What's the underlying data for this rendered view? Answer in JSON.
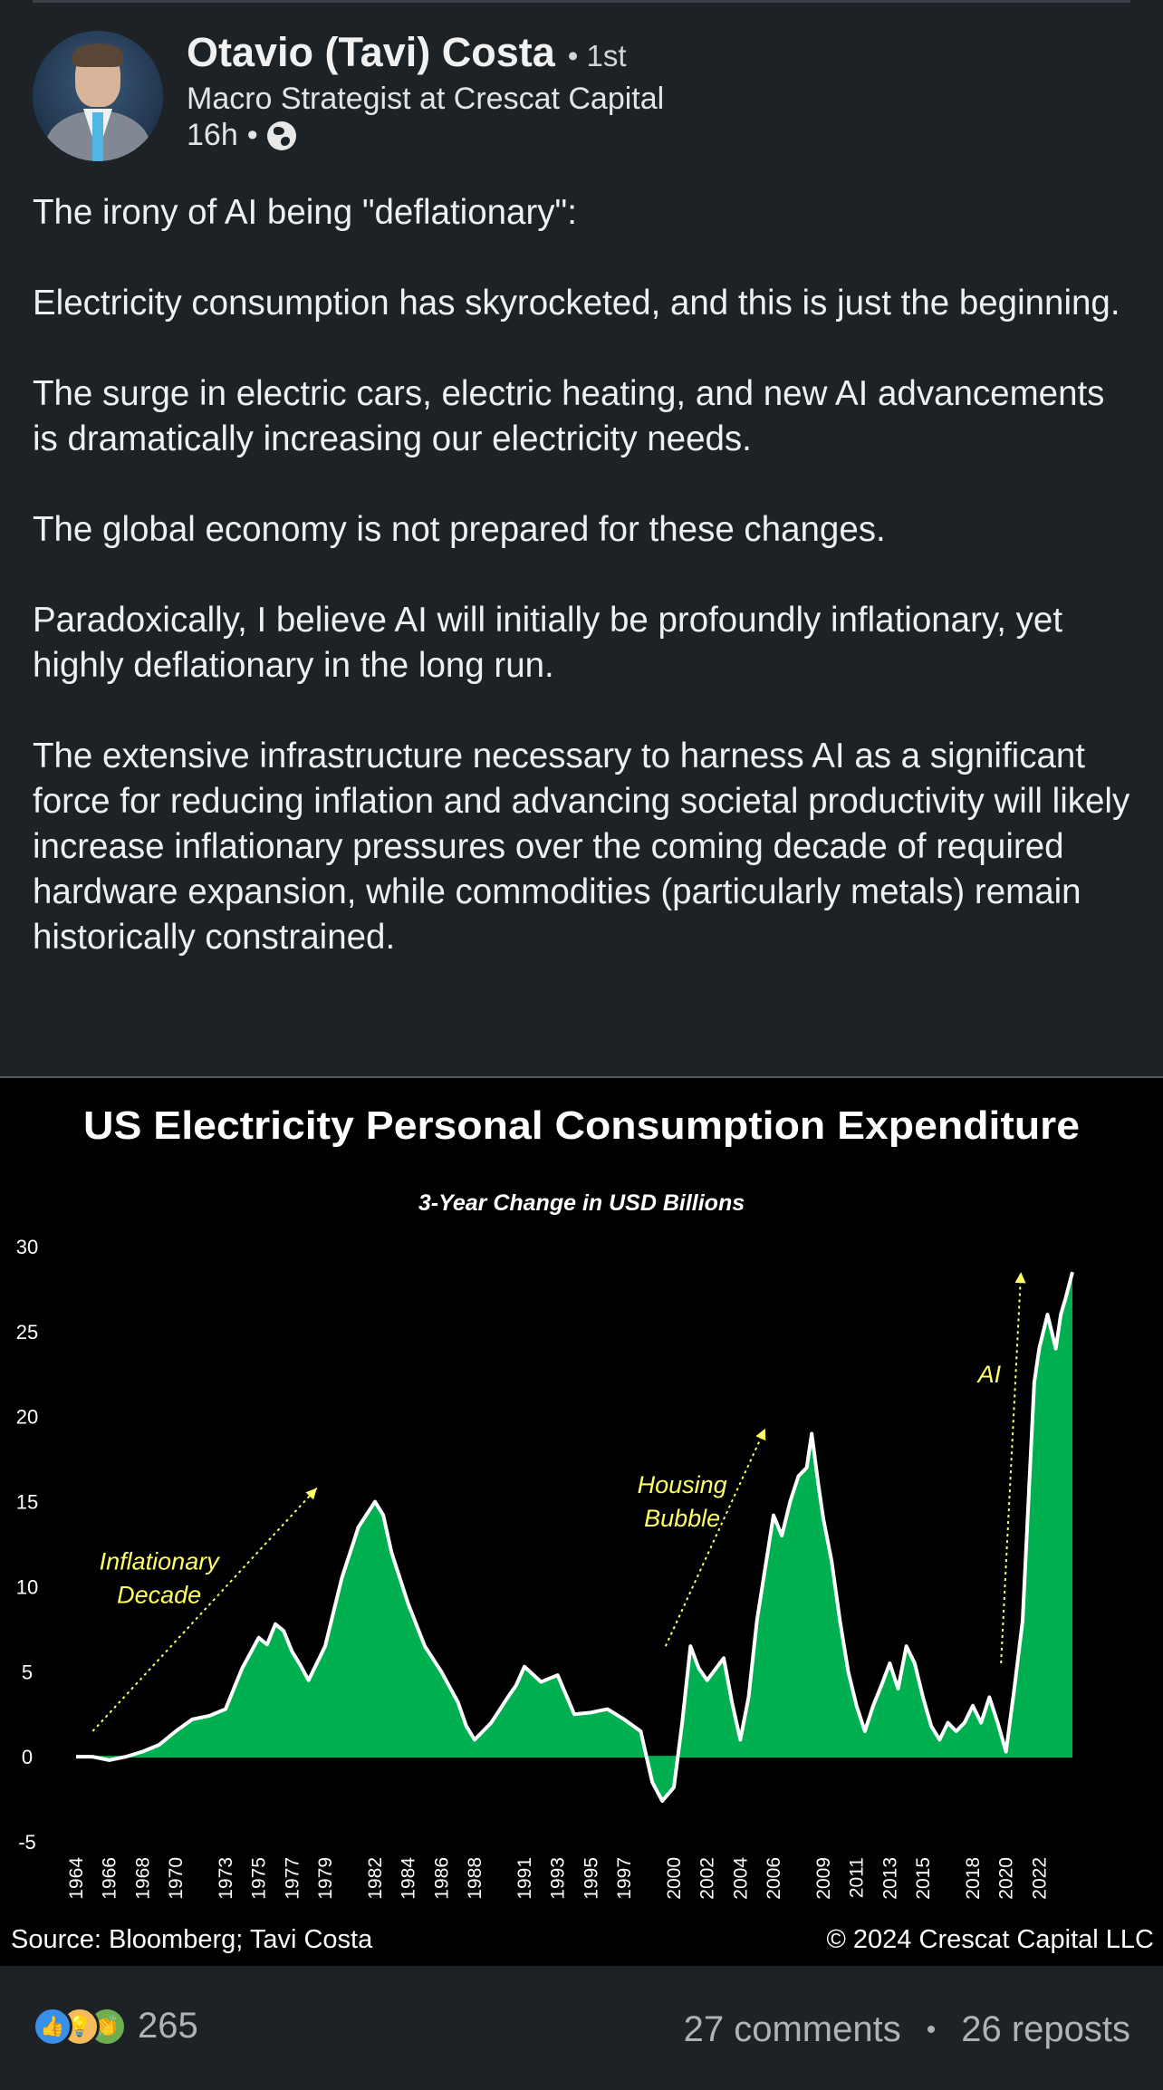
{
  "author": {
    "name": "Otavio (Tavi) Costa",
    "degree": "• 1st",
    "headline": "Macro Strategist at Crescat Capital",
    "time": "16h",
    "dot": "•"
  },
  "post": {
    "paragraphs": [
      "The irony of AI being \"deflationary\":",
      "Electricity consumption has skyrocketed, and this is just the beginning.",
      "The surge in electric cars, electric heating, and new AI advancements is dramatically increasing our electricity needs.",
      "The global economy is not prepared for these changes.",
      "Paradoxically, I believe AI will initially be profoundly inflationary, yet highly deflationary in the long run.",
      "The extensive infrastructure necessary to harness AI as a significant force for reducing inflation and advancing societal productivity will likely increase inflationary pressures over the coming decade of required hardware expansion, while commodities (particularly metals) remain historically constrained."
    ]
  },
  "chart_data": {
    "type": "area",
    "title": "US Electricity Personal Consumption Expenditure",
    "subtitle": "3-Year Change in USD Billions",
    "ylim": [
      -5,
      30
    ],
    "yticks": [
      -5,
      0,
      5,
      10,
      15,
      20,
      25,
      30
    ],
    "xlim": [
      1964,
      2024
    ],
    "xticks": [
      "1964",
      "1966",
      "1968",
      "1970",
      "1973",
      "1975",
      "1977",
      "1979",
      "1982",
      "1984",
      "1986",
      "1988",
      "1991",
      "1993",
      "1995",
      "1997",
      "2000",
      "2002",
      "2004",
      "2006",
      "2009",
      "2011",
      "2013",
      "2015",
      "2018",
      "2020",
      "2022"
    ],
    "grid": false,
    "fill_color": "#00b050",
    "line_color": "#ffffff",
    "annotation_color": "#ffff66",
    "annotations": [
      {
        "text": [
          "Inflationary",
          "Decade"
        ],
        "x": 1969,
        "y": 11
      },
      {
        "text": [
          "Housing",
          "Bubble"
        ],
        "x": 2000.5,
        "y": 15.5
      },
      {
        "text": [
          "AI"
        ],
        "x": 2019,
        "y": 22
      }
    ],
    "arrows": [
      {
        "from": [
          1965,
          1.5
        ],
        "to": [
          1978.5,
          15.8
        ]
      },
      {
        "from": [
          1999.5,
          6.5
        ],
        "to": [
          2005.5,
          19.3
        ]
      },
      {
        "from": [
          2019.7,
          5.5
        ],
        "to": [
          2020.9,
          28.5
        ]
      }
    ],
    "series": [
      {
        "x": [
          1964,
          1965,
          1966,
          1967,
          1968,
          1969,
          1970,
          1971,
          1972,
          1973,
          1974,
          1975,
          1975.5,
          1976,
          1976.5,
          1977,
          1977.5,
          1978,
          1979,
          1980,
          1981,
          1982,
          1982.5,
          1983,
          1984,
          1985,
          1986,
          1987,
          1987.5,
          1988,
          1989,
          1990,
          1990.5,
          1991,
          1992,
          1993,
          1994,
          1995,
          1996,
          1997,
          1998,
          1998.7,
          1999.3,
          2000,
          2000.5,
          2001,
          2001.5,
          2002,
          2003,
          2003.5,
          2004,
          2004.5,
          2005,
          2006,
          2006.5,
          2007,
          2007.5,
          2008,
          2008.3,
          2008.7,
          2009,
          2009.5,
          2010,
          2010.5,
          2011,
          2011.5,
          2012,
          2012.5,
          2013,
          2013.5,
          2014,
          2014.5,
          2015,
          2015.5,
          2016,
          2016.5,
          2017,
          2017.5,
          2018,
          2018.5,
          2019,
          2019.5,
          2020,
          2020.5,
          2021,
          2021.3,
          2021.7,
          2022,
          2022.5,
          2023,
          2023.3,
          2023.6,
          2024
        ],
        "values": [
          0,
          0,
          -0.2,
          0,
          0.3,
          0.7,
          1.5,
          2.2,
          2.4,
          2.8,
          5.2,
          7.0,
          6.6,
          7.8,
          7.4,
          6.2,
          5.4,
          4.5,
          6.5,
          10.5,
          13.5,
          15.0,
          14.2,
          12.0,
          9.0,
          6.5,
          5.0,
          3.2,
          1.8,
          1.0,
          2.0,
          3.5,
          4.2,
          5.3,
          4.4,
          4.8,
          2.5,
          2.6,
          2.8,
          2.2,
          1.5,
          -1.5,
          -2.6,
          -1.8,
          2.0,
          6.5,
          5.2,
          4.5,
          5.8,
          3.2,
          1.0,
          3.5,
          8.0,
          14.2,
          13.0,
          15.0,
          16.5,
          17.0,
          19.0,
          16.0,
          14.0,
          11.5,
          8.0,
          5.0,
          3.0,
          1.5,
          3.0,
          4.2,
          5.5,
          4.0,
          6.5,
          5.5,
          3.5,
          1.8,
          1.0,
          2.0,
          1.5,
          2.0,
          3.0,
          2.0,
          3.5,
          2.0,
          0.3,
          4.0,
          8.0,
          14.0,
          22.0,
          24.0,
          26.0,
          24.0,
          26.0,
          27.0,
          28.5
        ]
      }
    ]
  },
  "chart_footer": {
    "source": "Source: Bloomberg; Tavi Costa",
    "copyright": "© 2024 Crescat Capital LLC"
  },
  "social": {
    "reaction_count": "265",
    "comments": "27 comments",
    "separator": "•",
    "reposts": "26 reposts",
    "reaction_icons": [
      "like-icon",
      "insight-icon",
      "celebrate-icon"
    ],
    "reaction_glyphs": [
      "👍",
      "💡",
      "👏"
    ]
  }
}
